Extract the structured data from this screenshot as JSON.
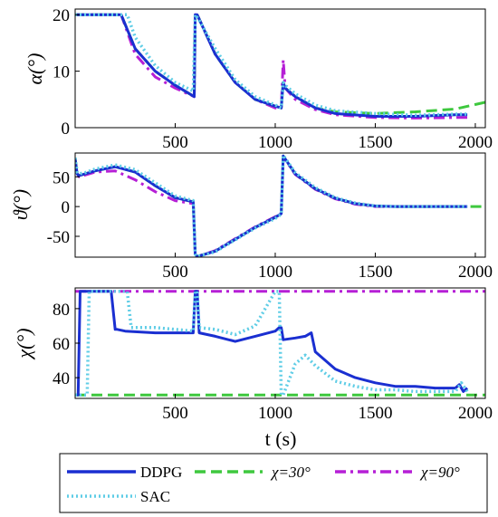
{
  "chart_data": [
    {
      "type": "line",
      "panel": "alpha",
      "ylabel": "α(°)",
      "xlim": [
        0,
        2050
      ],
      "ylim": [
        0,
        21
      ],
      "xticks": [
        500,
        1000,
        1500,
        2000
      ],
      "yticks": [
        0,
        10,
        20
      ],
      "series": [
        {
          "name": "DDPG",
          "x": [
            0,
            230,
            300,
            400,
            500,
            595,
            600,
            610,
            700,
            800,
            900,
            1000,
            1030,
            1040,
            1050,
            1100,
            1200,
            1300,
            1500,
            1700,
            1900,
            1960
          ],
          "y": [
            20,
            20,
            14,
            10,
            7.5,
            5.5,
            20,
            20,
            13,
            8,
            5,
            3.8,
            3.5,
            8,
            7,
            5.5,
            3.5,
            2.5,
            2,
            2,
            2.3,
            2.3
          ]
        },
        {
          "name": "SAC",
          "x": [
            0,
            260,
            300,
            400,
            500,
            590,
            600,
            620,
            700,
            800,
            900,
            1000,
            1030,
            1040,
            1050,
            1100,
            1200,
            1300,
            1500,
            1700,
            1900,
            1960
          ],
          "y": [
            20,
            20,
            16,
            11,
            8,
            6.5,
            20,
            19,
            14,
            8.5,
            5.5,
            4,
            3.5,
            8,
            7.5,
            6,
            4,
            3,
            2.5,
            2.2,
            2.4,
            2.4
          ]
        },
        {
          "name": "χ=30°",
          "x": [
            0,
            230,
            300,
            400,
            500,
            595,
            600,
            610,
            700,
            800,
            900,
            1000,
            1030,
            1040,
            1050,
            1100,
            1200,
            1300,
            1500,
            1700,
            1900,
            2050
          ],
          "y": [
            20,
            20,
            14,
            10,
            7.5,
            5.5,
            20,
            20,
            13,
            8,
            5,
            3.8,
            3.5,
            8,
            7,
            5.5,
            3.5,
            2.8,
            2.5,
            2.8,
            3.3,
            4.5
          ]
        },
        {
          "name": "χ=90°",
          "x": [
            0,
            230,
            300,
            400,
            500,
            595,
            600,
            610,
            700,
            800,
            900,
            1000,
            1030,
            1040,
            1050,
            1100,
            1200,
            1300,
            1500,
            1700,
            1900,
            1960
          ],
          "y": [
            20,
            20,
            13,
            9,
            7,
            5.5,
            20,
            20,
            13,
            8,
            5,
            3.5,
            3.5,
            12,
            7,
            5,
            3.2,
            2.3,
            1.8,
            1.7,
            1.8,
            1.8
          ]
        }
      ]
    },
    {
      "type": "line",
      "panel": "theta",
      "ylabel": "ϑ(°)",
      "xlim": [
        0,
        2050
      ],
      "ylim": [
        -85,
        90
      ],
      "xticks": [
        500,
        1000,
        1500,
        2000
      ],
      "yticks": [
        -50,
        0,
        50
      ],
      "series": [
        {
          "name": "DDPG",
          "x": [
            0,
            10,
            20,
            50,
            100,
            200,
            300,
            400,
            500,
            590,
            600,
            610,
            700,
            800,
            900,
            1000,
            1030,
            1040,
            1100,
            1200,
            1300,
            1400,
            1500,
            1600,
            1800,
            1960
          ],
          "y": [
            80,
            55,
            52,
            55,
            60,
            67,
            58,
            35,
            15,
            8,
            -80,
            -84,
            -75,
            -55,
            -35,
            -18,
            -12,
            85,
            55,
            30,
            14,
            5,
            1,
            0,
            0,
            0
          ]
        },
        {
          "name": "SAC",
          "x": [
            0,
            10,
            20,
            50,
            100,
            200,
            300,
            400,
            500,
            590,
            600,
            610,
            700,
            800,
            900,
            1000,
            1030,
            1040,
            1100,
            1200,
            1300,
            1400,
            1500,
            1600,
            1800,
            1960
          ],
          "y": [
            82,
            58,
            55,
            57,
            63,
            70,
            62,
            40,
            18,
            10,
            -80,
            -84,
            -76,
            -56,
            -36,
            -20,
            -13,
            86,
            57,
            32,
            15,
            6,
            1,
            0,
            0,
            0
          ]
        },
        {
          "name": "χ=30°",
          "x": [
            0,
            10,
            20,
            50,
            100,
            200,
            300,
            400,
            500,
            590,
            600,
            610,
            700,
            800,
            900,
            1000,
            1030,
            1040,
            1100,
            1200,
            1300,
            1400,
            1500,
            1600,
            1800,
            2050
          ],
          "y": [
            80,
            55,
            52,
            55,
            60,
            67,
            58,
            35,
            15,
            8,
            -80,
            -84,
            -75,
            -55,
            -35,
            -18,
            -12,
            85,
            55,
            30,
            14,
            5,
            1,
            0,
            0,
            0
          ]
        },
        {
          "name": "χ=90°",
          "x": [
            0,
            10,
            20,
            50,
            100,
            200,
            300,
            400,
            500,
            590,
            600,
            610,
            700,
            800,
            900,
            1000,
            1030,
            1040,
            1100,
            1200,
            1300,
            1400,
            1500,
            1600,
            1800,
            1960
          ],
          "y": [
            78,
            53,
            50,
            53,
            58,
            60,
            45,
            25,
            10,
            5,
            -80,
            -84,
            -74,
            -54,
            -34,
            -17,
            -11,
            84,
            54,
            29,
            13,
            4,
            0,
            0,
            0,
            0
          ]
        }
      ]
    },
    {
      "type": "line",
      "panel": "chi",
      "ylabel": "χ(°)",
      "xlabel": "t (s)",
      "xlim": [
        0,
        2050
      ],
      "ylim": [
        28,
        92
      ],
      "xticks": [
        500,
        1000,
        1500,
        2000
      ],
      "yticks": [
        40,
        60,
        80
      ],
      "series": [
        {
          "name": "DDPG",
          "x": [
            0,
            15,
            25,
            30,
            35,
            50,
            100,
            180,
            200,
            210,
            250,
            400,
            500,
            590,
            600,
            610,
            620,
            700,
            800,
            900,
            1000,
            1020,
            1030,
            1040,
            1100,
            1150,
            1180,
            1200,
            1300,
            1400,
            1500,
            1600,
            1700,
            1800,
            1900,
            1920,
            1940,
            1960
          ],
          "y": [
            30,
            30,
            90,
            90,
            90,
            90,
            90,
            90,
            68,
            68,
            67,
            66,
            66,
            66,
            90,
            90,
            66,
            64,
            61,
            64,
            67,
            69,
            69,
            62,
            63,
            64,
            66,
            55,
            45,
            40,
            37,
            35,
            35,
            34,
            34,
            36,
            32,
            34
          ]
        },
        {
          "name": "SAC",
          "x": [
            0,
            30,
            40,
            60,
            70,
            80,
            100,
            200,
            260,
            280,
            400,
            500,
            590,
            600,
            610,
            620,
            700,
            800,
            900,
            950,
            1000,
            1020,
            1030,
            1040,
            1100,
            1150,
            1200,
            1300,
            1400,
            1500,
            1600,
            1700,
            1800,
            1900,
            1930,
            1960
          ],
          "y": [
            30,
            30,
            30,
            30,
            90,
            90,
            90,
            90,
            90,
            69,
            69,
            68,
            67,
            90,
            90,
            69,
            68,
            65,
            70,
            80,
            90,
            90,
            30,
            30,
            48,
            53,
            47,
            38,
            35,
            33,
            33,
            32,
            32,
            32,
            37,
            32
          ]
        },
        {
          "name": "χ=30°",
          "x": [
            0,
            2050
          ],
          "y": [
            30,
            30
          ]
        },
        {
          "name": "χ=90°",
          "x": [
            0,
            2050
          ],
          "y": [
            90,
            90
          ]
        }
      ]
    }
  ],
  "legend": {
    "entries": [
      {
        "label": "DDPG",
        "color": "#1a2fd1",
        "style": "solid"
      },
      {
        "label": "χ=30°",
        "color": "#3ec83e",
        "style": "dashed"
      },
      {
        "label": "χ=90°",
        "color": "#b61fd6",
        "style": "dashdot"
      },
      {
        "label": "SAC",
        "color": "#5fcde6",
        "style": "dotted"
      }
    ]
  },
  "colors": {
    "DDPG": "#1a2fd1",
    "SAC": "#5fcde6",
    "chi30": "#3ec83e",
    "chi90": "#b61fd6"
  }
}
